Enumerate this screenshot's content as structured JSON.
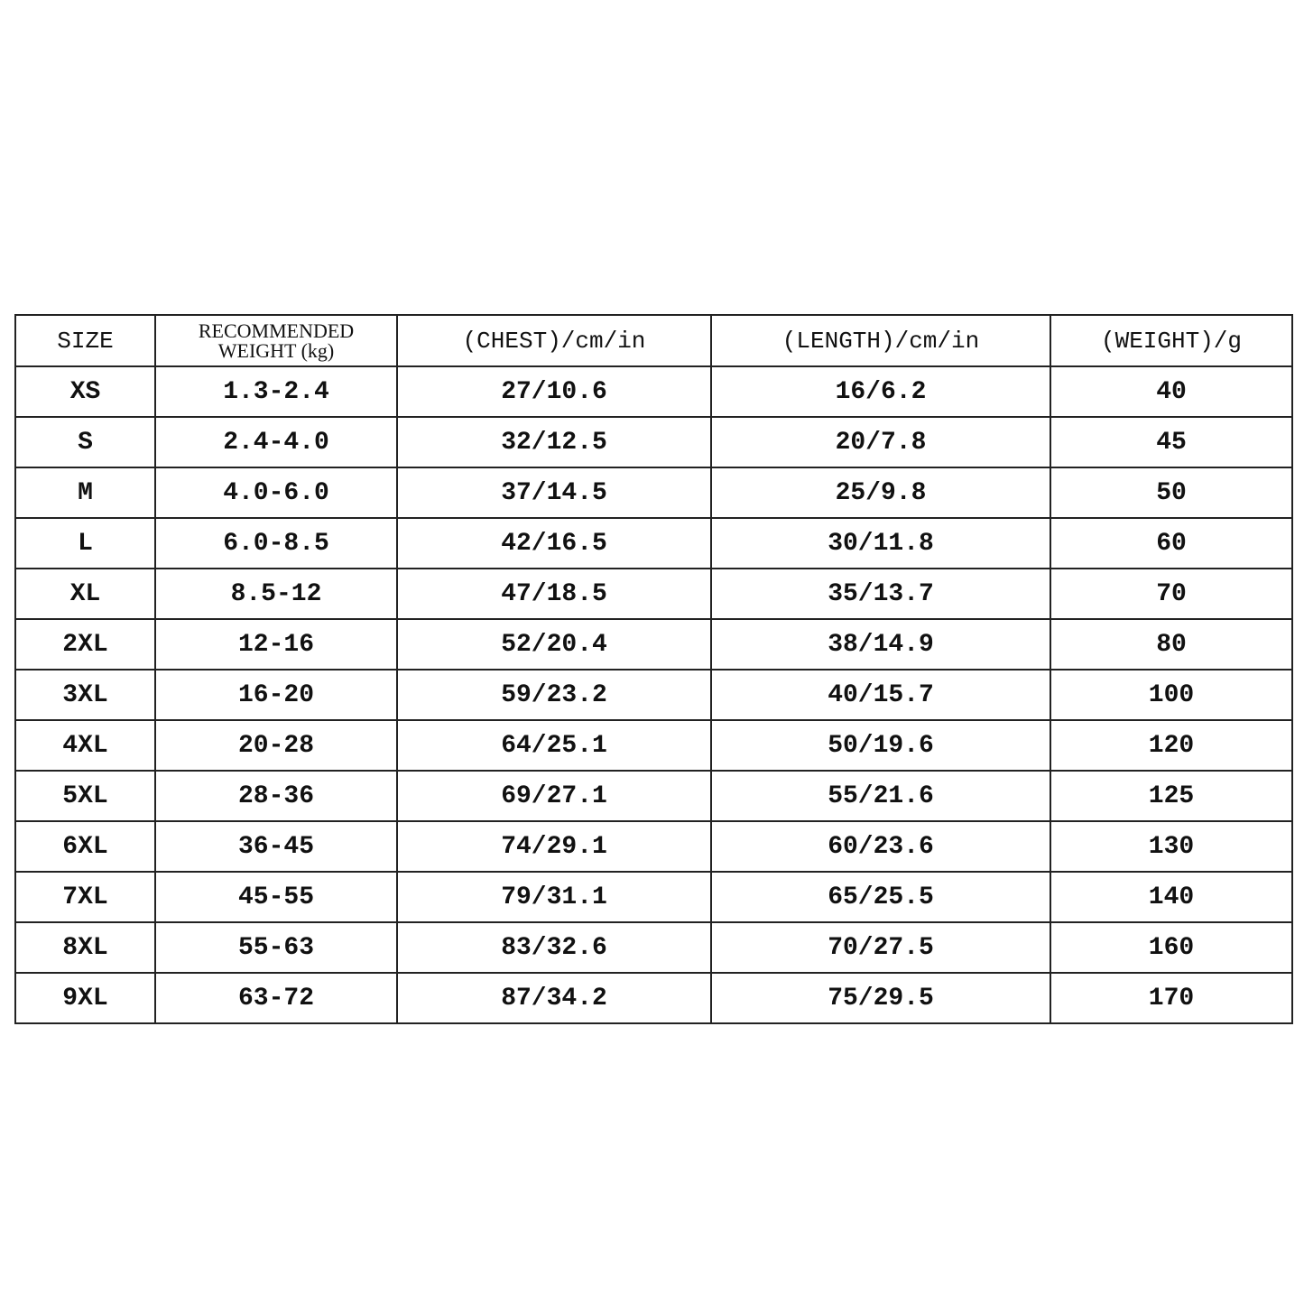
{
  "table": {
    "headers": [
      "SIZE",
      "RECOMMENDED WEIGHT (kg)",
      "(CHEST)/cm/in",
      "(LENGTH)/cm/in",
      "(WEIGHT)/g"
    ],
    "header_weight_line1": "RECOMMENDED",
    "header_weight_line2": "WEIGHT (kg)",
    "rows": [
      [
        "XS",
        "1.3-2.4",
        "27/10.6",
        "16/6.2",
        "40"
      ],
      [
        "S",
        "2.4-4.0",
        "32/12.5",
        "20/7.8",
        "45"
      ],
      [
        "M",
        "4.0-6.0",
        "37/14.5",
        "25/9.8",
        "50"
      ],
      [
        "L",
        "6.0-8.5",
        "42/16.5",
        "30/11.8",
        "60"
      ],
      [
        "XL",
        "8.5-12",
        "47/18.5",
        "35/13.7",
        "70"
      ],
      [
        "2XL",
        "12-16",
        "52/20.4",
        "38/14.9",
        "80"
      ],
      [
        "3XL",
        "16-20",
        "59/23.2",
        "40/15.7",
        "100"
      ],
      [
        "4XL",
        "20-28",
        "64/25.1",
        "50/19.6",
        "120"
      ],
      [
        "5XL",
        "28-36",
        "69/27.1",
        "55/21.6",
        "125"
      ],
      [
        "6XL",
        "36-45",
        "74/29.1",
        "60/23.6",
        "130"
      ],
      [
        "7XL",
        "45-55",
        "79/31.1",
        "65/25.5",
        "140"
      ],
      [
        "8XL",
        "55-63",
        "83/32.6",
        "70/27.5",
        "160"
      ],
      [
        "9XL",
        "63-72",
        "87/34.2",
        "75/29.5",
        "170"
      ]
    ]
  }
}
